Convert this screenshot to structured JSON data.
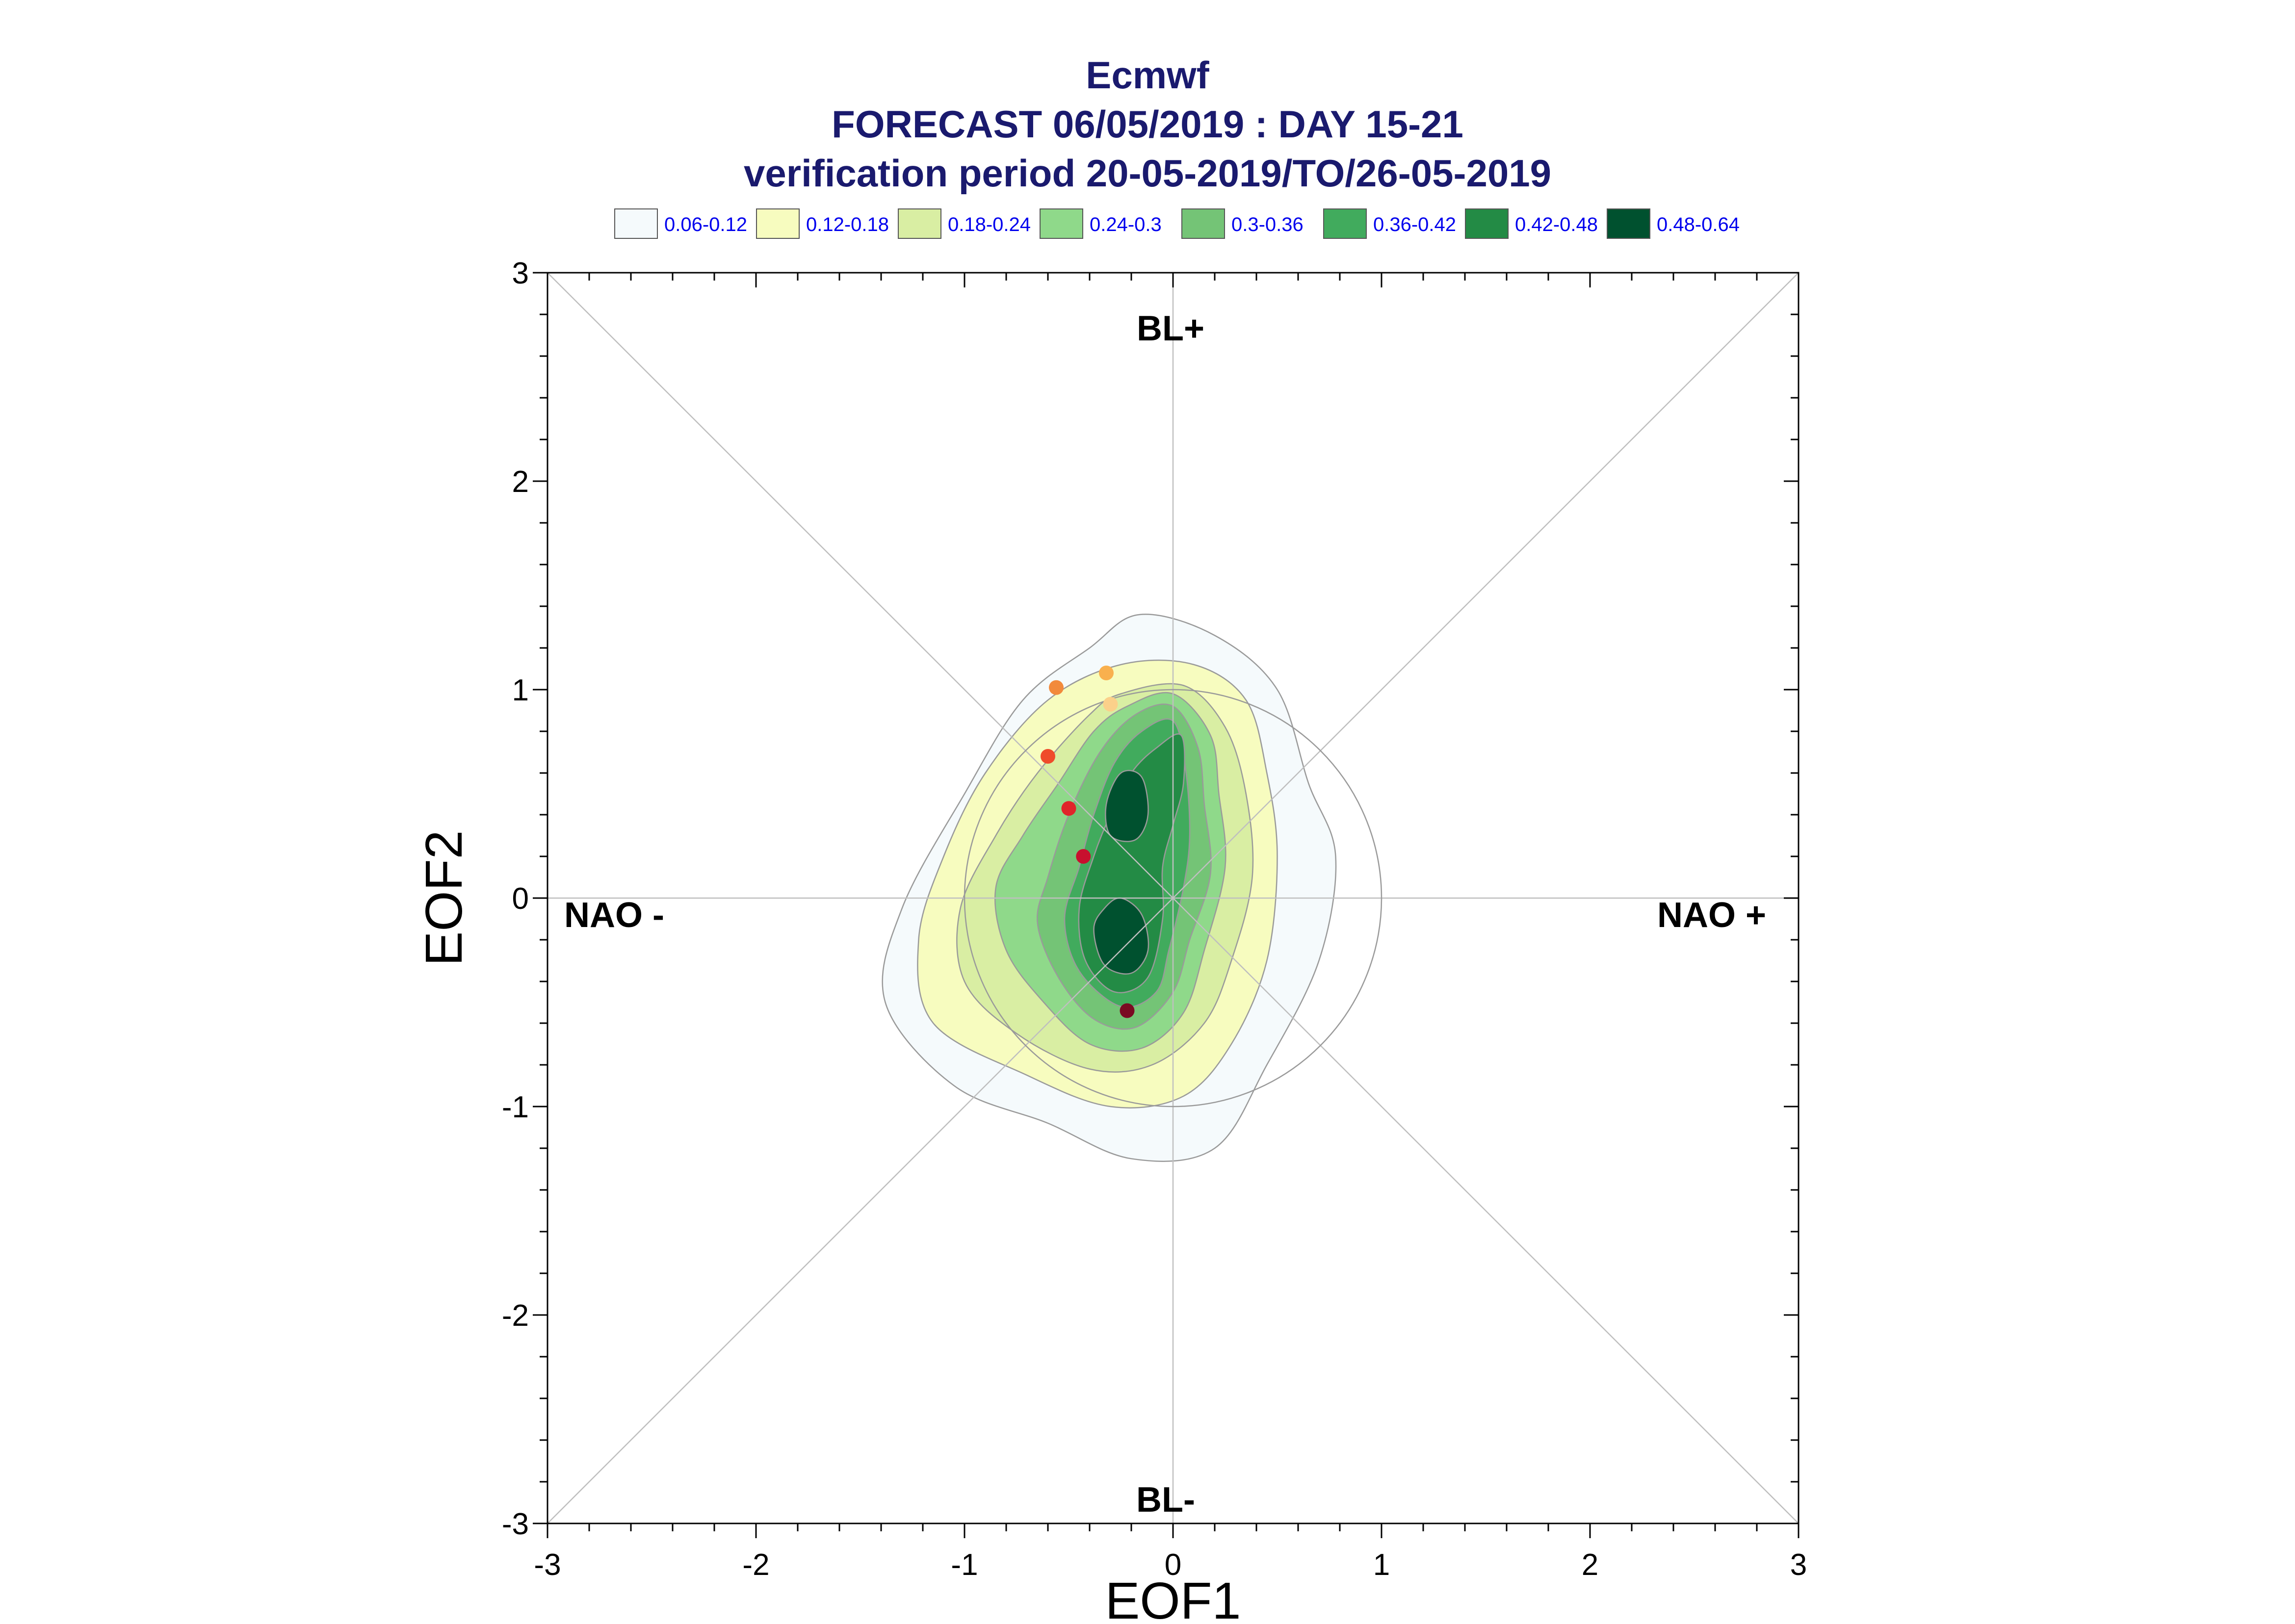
{
  "chart_data": {
    "type": "contour",
    "title_lines": [
      "Ecmwf",
      "FORECAST 06/05/2019 : DAY 15-21",
      "verification period 20-05-2019/TO/26-05-2019"
    ],
    "xlabel": "EOF1",
    "ylabel": "EOF2",
    "xlim": [
      -3,
      3
    ],
    "ylim": [
      -3,
      3
    ],
    "x_ticks": [
      "-3",
      "-2",
      "-1",
      "0",
      "1",
      "2",
      "3"
    ],
    "y_ticks": [
      "-3",
      "-2",
      "-1",
      "0",
      "1",
      "2",
      "3"
    ],
    "regime_labels": {
      "top": "BL+",
      "bottom": "BL-",
      "left": "NAO -",
      "right": "NAO +"
    },
    "legend": [
      {
        "label": "0.06-0.12",
        "color": "#f5fafc"
      },
      {
        "label": "0.12-0.18",
        "color": "#f7fcbf"
      },
      {
        "label": "0.18-0.24",
        "color": "#d9eea3"
      },
      {
        "label": "0.24-0.3",
        "color": "#8fd98a"
      },
      {
        "label": "0.3-0.36",
        "color": "#74c476"
      },
      {
        "label": "0.36-0.42",
        "color": "#41ab5d"
      },
      {
        "label": "0.42-0.48",
        "color": "#238b45"
      },
      {
        "label": "0.48-0.64",
        "color": "#00512f"
      }
    ],
    "density_levels": [
      {
        "range": "0.06-0.12",
        "color": "#f5fafc",
        "polygon": [
          [
            -0.16,
            1.36
          ],
          [
            0.2,
            1.26
          ],
          [
            0.5,
            1.0
          ],
          [
            0.65,
            0.55
          ],
          [
            0.78,
            0.2
          ],
          [
            0.7,
            -0.3
          ],
          [
            0.45,
            -0.8
          ],
          [
            0.2,
            -1.2
          ],
          [
            -0.2,
            -1.25
          ],
          [
            -0.6,
            -1.08
          ],
          [
            -1.05,
            -0.9
          ],
          [
            -1.38,
            -0.5
          ],
          [
            -1.3,
            -0.05
          ],
          [
            -1.0,
            0.5
          ],
          [
            -0.72,
            0.95
          ],
          [
            -0.4,
            1.2
          ]
        ]
      },
      {
        "range": "0.12-0.18",
        "color": "#f7fcbf",
        "polygon": [
          [
            -0.25,
            1.12
          ],
          [
            0.1,
            1.12
          ],
          [
            0.35,
            0.95
          ],
          [
            0.45,
            0.6
          ],
          [
            0.5,
            0.2
          ],
          [
            0.45,
            -0.3
          ],
          [
            0.28,
            -0.7
          ],
          [
            0.05,
            -0.95
          ],
          [
            -0.3,
            -1.0
          ],
          [
            -0.7,
            -0.85
          ],
          [
            -1.15,
            -0.6
          ],
          [
            -1.22,
            -0.2
          ],
          [
            -1.1,
            0.2
          ],
          [
            -0.9,
            0.6
          ],
          [
            -0.6,
            0.95
          ]
        ]
      },
      {
        "range": "0.18-0.24",
        "color": "#d9eea3",
        "polygon": [
          [
            -0.25,
            0.98
          ],
          [
            0.05,
            1.02
          ],
          [
            0.25,
            0.82
          ],
          [
            0.35,
            0.5
          ],
          [
            0.38,
            0.1
          ],
          [
            0.28,
            -0.3
          ],
          [
            0.15,
            -0.6
          ],
          [
            -0.1,
            -0.8
          ],
          [
            -0.4,
            -0.82
          ],
          [
            -0.75,
            -0.65
          ],
          [
            -1.0,
            -0.4
          ],
          [
            -1.02,
            -0.05
          ],
          [
            -0.85,
            0.3
          ],
          [
            -0.65,
            0.6
          ],
          [
            -0.4,
            0.88
          ]
        ]
      },
      {
        "range": "0.24-0.3",
        "color": "#8fd98a",
        "polygon": [
          [
            -0.22,
            0.92
          ],
          [
            0.0,
            0.98
          ],
          [
            0.18,
            0.78
          ],
          [
            0.22,
            0.5
          ],
          [
            0.25,
            0.15
          ],
          [
            0.15,
            -0.25
          ],
          [
            0.05,
            -0.55
          ],
          [
            -0.15,
            -0.72
          ],
          [
            -0.4,
            -0.7
          ],
          [
            -0.62,
            -0.5
          ],
          [
            -0.8,
            -0.25
          ],
          [
            -0.85,
            0.05
          ],
          [
            -0.72,
            0.3
          ],
          [
            -0.55,
            0.55
          ],
          [
            -0.38,
            0.8
          ]
        ]
      },
      {
        "range": "0.3-0.36",
        "color": "#74c476",
        "polygon": [
          [
            -0.18,
            0.88
          ],
          [
            0.0,
            0.92
          ],
          [
            0.12,
            0.72
          ],
          [
            0.15,
            0.45
          ],
          [
            0.18,
            0.12
          ],
          [
            0.08,
            -0.2
          ],
          [
            0.0,
            -0.45
          ],
          [
            -0.18,
            -0.62
          ],
          [
            -0.38,
            -0.58
          ],
          [
            -0.55,
            -0.38
          ],
          [
            -0.65,
            -0.12
          ],
          [
            -0.6,
            0.1
          ],
          [
            -0.5,
            0.4
          ],
          [
            -0.35,
            0.7
          ]
        ]
      },
      {
        "range": "0.36-0.42",
        "color": "#41ab5d",
        "polygon": [
          [
            -0.15,
            0.8
          ],
          [
            0.0,
            0.85
          ],
          [
            0.06,
            0.62
          ],
          [
            0.08,
            0.3
          ],
          [
            0.05,
            0.05
          ],
          [
            -0.02,
            -0.25
          ],
          [
            -0.08,
            -0.45
          ],
          [
            -0.25,
            -0.52
          ],
          [
            -0.45,
            -0.35
          ],
          [
            -0.52,
            -0.1
          ],
          [
            -0.45,
            0.15
          ],
          [
            -0.38,
            0.4
          ],
          [
            -0.28,
            0.65
          ]
        ]
      },
      {
        "range": "0.42-0.48",
        "color": "#238b45",
        "polygon": [
          [
            -0.08,
            0.72
          ],
          [
            0.04,
            0.78
          ],
          [
            0.05,
            0.55
          ],
          [
            0.0,
            0.35
          ],
          [
            -0.05,
            0.15
          ],
          [
            -0.05,
            -0.1
          ],
          [
            -0.12,
            -0.38
          ],
          [
            -0.28,
            -0.45
          ],
          [
            -0.42,
            -0.3
          ],
          [
            -0.45,
            -0.05
          ],
          [
            -0.38,
            0.2
          ],
          [
            -0.3,
            0.4
          ],
          [
            -0.2,
            0.6
          ]
        ]
      },
      {
        "range": "0.48-0.64",
        "color": "#00512f",
        "polygon": [
          [
            -0.25,
            0.6
          ],
          [
            -0.15,
            0.58
          ],
          [
            -0.12,
            0.4
          ],
          [
            -0.18,
            0.28
          ],
          [
            -0.3,
            0.3
          ],
          [
            -0.32,
            0.45
          ]
        ]
      },
      {
        "range": "0.48-0.64",
        "color": "#00512f",
        "polygon": [
          [
            -0.25,
            0.0
          ],
          [
            -0.15,
            -0.08
          ],
          [
            -0.12,
            -0.25
          ],
          [
            -0.2,
            -0.36
          ],
          [
            -0.33,
            -0.32
          ],
          [
            -0.38,
            -0.15
          ],
          [
            -0.33,
            -0.05
          ]
        ]
      }
    ],
    "points": [
      {
        "x": -0.56,
        "y": 1.01,
        "color": "#f28a3c"
      },
      {
        "x": -0.32,
        "y": 1.08,
        "color": "#f9b04e"
      },
      {
        "x": -0.3,
        "y": 0.93,
        "color": "#fbd08a"
      },
      {
        "x": -0.6,
        "y": 0.68,
        "color": "#ef4c2b"
      },
      {
        "x": -0.5,
        "y": 0.43,
        "color": "#e0252a"
      },
      {
        "x": -0.43,
        "y": 0.2,
        "color": "#c8102e"
      },
      {
        "x": -0.22,
        "y": -0.54,
        "color": "#7a0a22"
      }
    ],
    "reference_circle": {
      "center": [
        0,
        0
      ],
      "radius": 1
    },
    "grid": true
  }
}
